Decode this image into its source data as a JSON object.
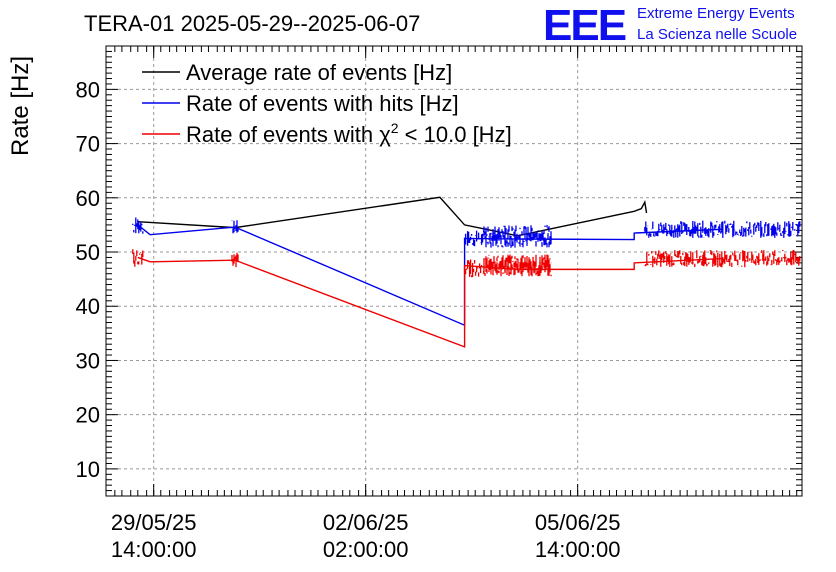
{
  "chart_data": {
    "type": "line",
    "title": "TERA-01 2025-05-29--2025-06-07",
    "ylabel": "Rate [Hz]",
    "xlabel": "",
    "ylim": [
      5,
      88
    ],
    "yticks": [
      10,
      20,
      30,
      40,
      50,
      60,
      70,
      80
    ],
    "x_range_hours": [
      -13.5,
      183.5
    ],
    "xticks": [
      {
        "hours": 0,
        "date": "29/05/25",
        "time": "14:00:00"
      },
      {
        "hours": 60,
        "date": "02/06/25",
        "time": "02:00:00"
      },
      {
        "hours": 120,
        "date": "05/06/25",
        "time": "14:00:00"
      }
    ],
    "x_reference": "2025-05-29 14:00:00",
    "grid": true,
    "legend_position": "top-left",
    "series": [
      {
        "name": "Average rate of events [Hz]",
        "color": "#000000",
        "points": [
          [
            -4.5,
            55.6
          ],
          [
            23,
            54.5
          ],
          [
            81,
            60.1
          ],
          [
            88,
            55.0
          ],
          [
            103,
            53.0
          ],
          [
            136,
            57.5
          ],
          [
            138,
            58.0
          ],
          [
            139,
            59.2
          ],
          [
            139.5,
            57.2
          ]
        ]
      },
      {
        "name": "Rate of events with hits [Hz]",
        "color": "#0000ee",
        "bursts": [
          [
            -4.5,
            55.0,
            1.8
          ],
          [
            23,
            54.5,
            1.4
          ],
          [
            88,
            52.5,
            1.6
          ],
          [
            103,
            52.2,
            1.4
          ],
          [
            136,
            53.5,
            1.5
          ],
          [
            161,
            54.2,
            1.6
          ]
        ],
        "points": [
          [
            -4.5,
            55.0
          ],
          [
            -1,
            53.2
          ],
          [
            23,
            54.6
          ],
          [
            88,
            36.5
          ],
          [
            88,
            52.5
          ],
          [
            103,
            52.4
          ],
          [
            136,
            52.3
          ],
          [
            136,
            53.5
          ],
          [
            161,
            54.2
          ]
        ]
      },
      {
        "name": "Rate of events with χ² < 10.0 [Hz]",
        "color": "#ee0000",
        "bursts": [
          [
            -4.5,
            49.0,
            1.8
          ],
          [
            23,
            48.5,
            1.6
          ],
          [
            88,
            47.0,
            1.7
          ],
          [
            103,
            47.0,
            1.5
          ],
          [
            136,
            48.0,
            1.6
          ],
          [
            161,
            48.8,
            1.6
          ]
        ],
        "points": [
          [
            -4.5,
            49.0
          ],
          [
            -1,
            48.2
          ],
          [
            23,
            48.5
          ],
          [
            88,
            32.5
          ],
          [
            88,
            47.5
          ],
          [
            103,
            46.8
          ],
          [
            136,
            46.8
          ],
          [
            136,
            48.0
          ],
          [
            161,
            48.8
          ]
        ]
      }
    ]
  },
  "legend": {
    "avg_label": "Average rate of events [Hz]",
    "hits_label": "Rate of events with hits [Hz]",
    "chi_label_prefix": "Rate of events with χ",
    "chi_label_sup": "2",
    "chi_label_suffix": " < 10.0 [Hz]"
  },
  "logo": {
    "mark": "EEE",
    "line1": "Extreme Energy Events",
    "line2": "La Scienza nelle Scuole",
    "color": "#1010ee"
  }
}
